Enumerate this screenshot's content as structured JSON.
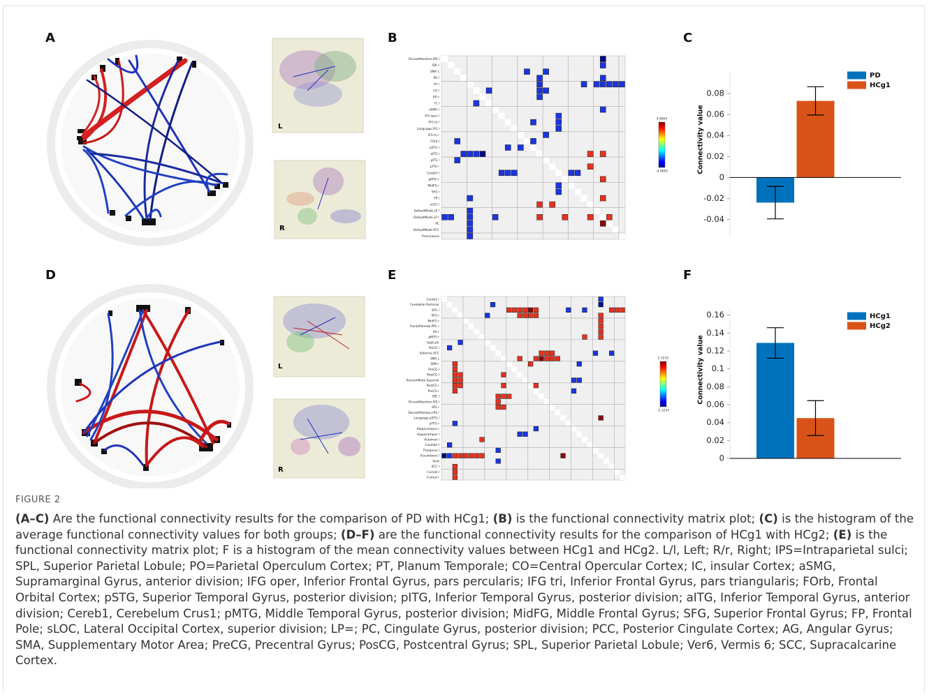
{
  "panels": [
    "A",
    "B",
    "C",
    "D",
    "E",
    "F"
  ],
  "brain_labels": {
    "a": [
      "L",
      "R"
    ],
    "d": [
      "L",
      "R"
    ]
  },
  "matrices": [
    {
      "row_labels": [
        "DorsalAttention.IPS l",
        "SPL l",
        "SMA L",
        "PO l",
        "PT l",
        "CO l",
        "PO r",
        "IC l",
        "aSMG l",
        "IFG oper l",
        "IFG tri l",
        "Language.IFG l",
        "IFG tri r",
        "FOrb l",
        "pSTG l",
        "aITG l",
        "pITG l",
        "pITG r",
        "Cereb1 l",
        "pMTG r",
        "MidFG r",
        "SFG l",
        "FP l",
        "sLOC l",
        "DefaultMode.LP l",
        "DefaultMode.LP r",
        "PC",
        "DefaultMode.PCC",
        "Precuneous"
      ],
      "clim": [
        -4.9665,
        4.9665
      ],
      "cells": [
        [
          0,
          25,
          -4.5
        ],
        [
          1,
          25,
          -3.8
        ],
        [
          2,
          13,
          -3.8
        ],
        [
          2,
          16,
          -3.8
        ],
        [
          3,
          25,
          -3.8
        ],
        [
          3,
          15,
          -3.8
        ],
        [
          4,
          15,
          -3.8
        ],
        [
          5,
          15,
          -3.8
        ],
        [
          5,
          16,
          -3.8
        ],
        [
          6,
          15,
          -3.8
        ],
        [
          4,
          22,
          -3.8
        ],
        [
          4,
          24,
          -3.8
        ],
        [
          4,
          25,
          -3.8
        ],
        [
          4,
          26,
          -3.8
        ],
        [
          4,
          27,
          -3.8
        ],
        [
          4,
          28,
          -3.8
        ],
        [
          5,
          7,
          -3.8
        ],
        [
          7,
          5,
          -3.8
        ],
        [
          8,
          25,
          -3.8
        ],
        [
          9,
          18,
          -3.8
        ],
        [
          10,
          18,
          -3.8
        ],
        [
          11,
          18,
          -3.8
        ],
        [
          10,
          14,
          -3.8
        ],
        [
          12,
          16,
          -3.8
        ],
        [
          13,
          14,
          -3.8
        ],
        [
          13,
          2,
          -3.8
        ],
        [
          14,
          10,
          -3.8
        ],
        [
          14,
          12,
          -3.8
        ],
        [
          15,
          3,
          -3.8
        ],
        [
          15,
          4,
          -3.8
        ],
        [
          15,
          5,
          -3.8
        ],
        [
          15,
          6,
          -4.7
        ],
        [
          16,
          2,
          -3.8
        ],
        [
          15,
          23,
          3.8
        ],
        [
          15,
          25,
          3.8
        ],
        [
          17,
          23,
          3.8
        ],
        [
          18,
          9,
          -3.8
        ],
        [
          18,
          10,
          -3.8
        ],
        [
          18,
          11,
          -3.8
        ],
        [
          18,
          20,
          -3.8
        ],
        [
          18,
          21,
          -3.8
        ],
        [
          19,
          25,
          3.8
        ],
        [
          20,
          18,
          -3.8
        ],
        [
          21,
          18,
          -3.8
        ],
        [
          22,
          25,
          3.8
        ],
        [
          22,
          4,
          -3.8
        ],
        [
          23,
          15,
          3.8
        ],
        [
          23,
          17,
          3.8
        ],
        [
          25,
          0,
          -3.8
        ],
        [
          25,
          1,
          -3.8
        ],
        [
          24,
          4,
          -3.8
        ],
        [
          25,
          4,
          -3.8
        ],
        [
          26,
          4,
          -3.8
        ],
        [
          27,
          4,
          -3.8
        ],
        [
          28,
          4,
          -3.8
        ],
        [
          25,
          8,
          -3.8
        ],
        [
          25,
          15,
          3.8
        ],
        [
          25,
          19,
          3.8
        ],
        [
          25,
          23,
          3.8
        ],
        [
          25,
          26,
          3.8
        ],
        [
          26,
          25,
          4.6
        ]
      ]
    },
    {
      "row_labels": [
        "Cereb1 r",
        "Cerebellar.Posterior",
        "SFG l",
        "SFG r",
        "MidFG r",
        "FrontoParietal.PPC r",
        "AG r",
        "pMTG r",
        "SubCalC",
        "PaCiG l",
        "Salience.ACC",
        "SMA L",
        "SMA r",
        "PreCG l",
        "PostCG l",
        "SensoriMotor.Superior",
        "PostCG r",
        "PreCG r",
        "SPL l",
        "DorsalAttention.IPS l",
        "SPL r",
        "DorsalAttention.IPS r",
        "Language.pSTG l",
        "pTFG r",
        "Hippocampus r",
        "Hippocampus l",
        "Putamen l",
        "Caudate l",
        "Thalamus l",
        "Accumbens l",
        "Ver6",
        "SCC l",
        "Cuneal l",
        "Cuneal r"
      ],
      "clim": [
        -5.3235,
        5.3235
      ],
      "cells": [
        [
          0,
          29,
          -4.0
        ],
        [
          1,
          29,
          -5.0
        ],
        [
          1,
          9,
          -4.0
        ],
        [
          2,
          12,
          4.0
        ],
        [
          2,
          13,
          4.0
        ],
        [
          2,
          14,
          4.0
        ],
        [
          2,
          15,
          4.0
        ],
        [
          2,
          16,
          5.0
        ],
        [
          2,
          17,
          4.0
        ],
        [
          2,
          31,
          4.0
        ],
        [
          2,
          32,
          4.0
        ],
        [
          2,
          33,
          4.0
        ],
        [
          2,
          23,
          -4.0
        ],
        [
          2,
          26,
          -4.0
        ],
        [
          3,
          8,
          -4.0
        ],
        [
          3,
          14,
          4.0
        ],
        [
          3,
          15,
          4.0
        ],
        [
          3,
          16,
          4.0
        ],
        [
          3,
          17,
          4.0
        ],
        [
          3,
          29,
          4.0
        ],
        [
          4,
          29,
          4.0
        ],
        [
          5,
          29,
          4.0
        ],
        [
          6,
          29,
          4.0
        ],
        [
          7,
          26,
          4.0
        ],
        [
          7,
          29,
          4.0
        ],
        [
          8,
          3,
          -4.0
        ],
        [
          9,
          1,
          -4.0
        ],
        [
          10,
          28,
          -4.0
        ],
        [
          10,
          31,
          -4.0
        ],
        [
          10,
          18,
          4.0
        ],
        [
          10,
          19,
          4.0
        ],
        [
          10,
          20,
          4.0
        ],
        [
          11,
          14,
          4.0
        ],
        [
          11,
          17,
          4.0
        ],
        [
          11,
          18,
          5.0
        ],
        [
          11,
          19,
          4.0
        ],
        [
          11,
          20,
          4.0
        ],
        [
          11,
          21,
          4.0
        ],
        [
          12,
          2,
          4.0
        ],
        [
          12,
          16,
          4.0
        ],
        [
          12,
          25,
          -4.0
        ],
        [
          13,
          2,
          4.0
        ],
        [
          14,
          2,
          4.0
        ],
        [
          15,
          2,
          4.0
        ],
        [
          16,
          2,
          4.0
        ],
        [
          17,
          2,
          4.0
        ],
        [
          14,
          3,
          4.0
        ],
        [
          15,
          3,
          4.0
        ],
        [
          16,
          3,
          4.0
        ],
        [
          14,
          11,
          4.0
        ],
        [
          15,
          24,
          -4.0
        ],
        [
          15,
          25,
          -4.0
        ],
        [
          16,
          11,
          4.0
        ],
        [
          16,
          17,
          4.0
        ],
        [
          17,
          24,
          -4.0
        ],
        [
          18,
          10,
          4.0
        ],
        [
          18,
          11,
          4.0
        ],
        [
          18,
          12,
          4.0
        ],
        [
          19,
          10,
          4.0
        ],
        [
          20,
          10,
          4.0
        ],
        [
          20,
          11,
          4.0
        ],
        [
          22,
          29,
          5.0
        ],
        [
          23,
          2,
          -4.0
        ],
        [
          25,
          14,
          -4.0
        ],
        [
          24,
          17,
          -4.0
        ],
        [
          25,
          15,
          -4.0
        ],
        [
          26,
          7,
          4.0
        ],
        [
          27,
          1,
          -4.0
        ],
        [
          28,
          10,
          -4.0
        ],
        [
          29,
          0,
          -5.0
        ],
        [
          29,
          1,
          -4.0
        ],
        [
          29,
          2,
          4.0
        ],
        [
          29,
          3,
          4.0
        ],
        [
          29,
          4,
          4.0
        ],
        [
          29,
          5,
          4.0
        ],
        [
          29,
          6,
          4.0
        ],
        [
          29,
          7,
          4.0
        ],
        [
          29,
          22,
          5.0
        ],
        [
          30,
          10,
          -4.0
        ],
        [
          31,
          2,
          4.0
        ],
        [
          32,
          2,
          4.0
        ],
        [
          33,
          2,
          4.0
        ]
      ]
    }
  ],
  "chart_data": [
    {
      "type": "bar",
      "ylabel": "Connectivity value",
      "categories": [
        null
      ],
      "series": [
        {
          "name": "PD",
          "color": "#0072bd",
          "values": [
            -0.024
          ],
          "errors": [
            0.0155
          ]
        },
        {
          "name": "HCg1",
          "color": "#d95319",
          "values": [
            0.073
          ],
          "errors": [
            0.0135
          ]
        }
      ],
      "ylim": [
        -0.057,
        0.1
      ],
      "yticks": [
        -0.04,
        -0.02,
        0,
        0.02,
        0.04,
        0.06,
        0.08
      ],
      "legend": "upper right"
    },
    {
      "type": "bar",
      "ylabel": "Connectivity value",
      "categories": [
        null
      ],
      "series": [
        {
          "name": "HCg1",
          "color": "#0072bd",
          "values": [
            0.129
          ],
          "errors": [
            0.017
          ]
        },
        {
          "name": "HCg2",
          "color": "#d95319",
          "values": [
            0.045
          ],
          "errors": [
            0.0195
          ]
        }
      ],
      "ylim": [
        0,
        0.166
      ],
      "yticks": [
        0,
        0.02,
        0.04,
        0.06,
        0.08,
        0.1,
        0.12,
        0.14,
        0.16
      ],
      "legend": "upper right"
    }
  ],
  "figure": {
    "label": "FIGURE 2",
    "caption": [
      {
        "text": "(A–C)",
        "bold": true
      },
      {
        "text": " Are the functional connectivity results for the comparison of PD with HCg1; "
      },
      {
        "text": "(B)",
        "bold": true
      },
      {
        "text": " is the functional connectivity matrix plot; "
      },
      {
        "text": "(C)",
        "bold": true
      },
      {
        "text": " is the histogram of the average functional connectivity values for both groups; "
      },
      {
        "text": "(D–F)",
        "bold": true
      },
      {
        "text": " are the functional connectivity results for the comparison of HCg1 with HCg2; "
      },
      {
        "text": "(E)",
        "bold": true
      },
      {
        "text": " is the functional connectivity matrix plot; F is a histogram of the mean connectivity values between HCg1 and HCg2. L/l, Left; R/r, Right; IPS=Intraparietal sulci; SPL, Superior Parietal Lobule; PO=Parietal Operculum Cortex; PT, Planum Temporale; CO=Central Opercular Cortex; IC, insular Cortex; aSMG, Supramarginal Gyrus, anterior division; IFG oper, Inferior Frontal Gyrus, pars percularis; IFG tri, Inferior Frontal Gyrus, pars triangularis; FOrb, Frontal Orbital Cortex; pSTG, Superior Temporal Gyrus, posterior division; pITG, Inferior Temporal Gyrus, posterior division; aITG, Inferior Temporal Gyrus, anterior division; Cereb1, Cerebelum Crus1; pMTG, Middle Temporal Gyrus, posterior division; MidFG, Middle Frontal Gyrus; SFG, Superior Frontal Gyrus; FP, Frontal Pole; sLOC, Lateral Occipital Cortex, superior division; LP=; PC, Cingulate Gyrus, posterior division; PCC, Posterior Cingulate Cortex; AG, Angular Gyrus; SMA, Supplementary Motor Area; PreCG, Precentral Gyrus; PosCG, Postcentral Gyrus; SPL, Superior Parietal Lobule; Ver6, Vermis 6; SCC, Supracalcarine Cortex."
      }
    ]
  }
}
